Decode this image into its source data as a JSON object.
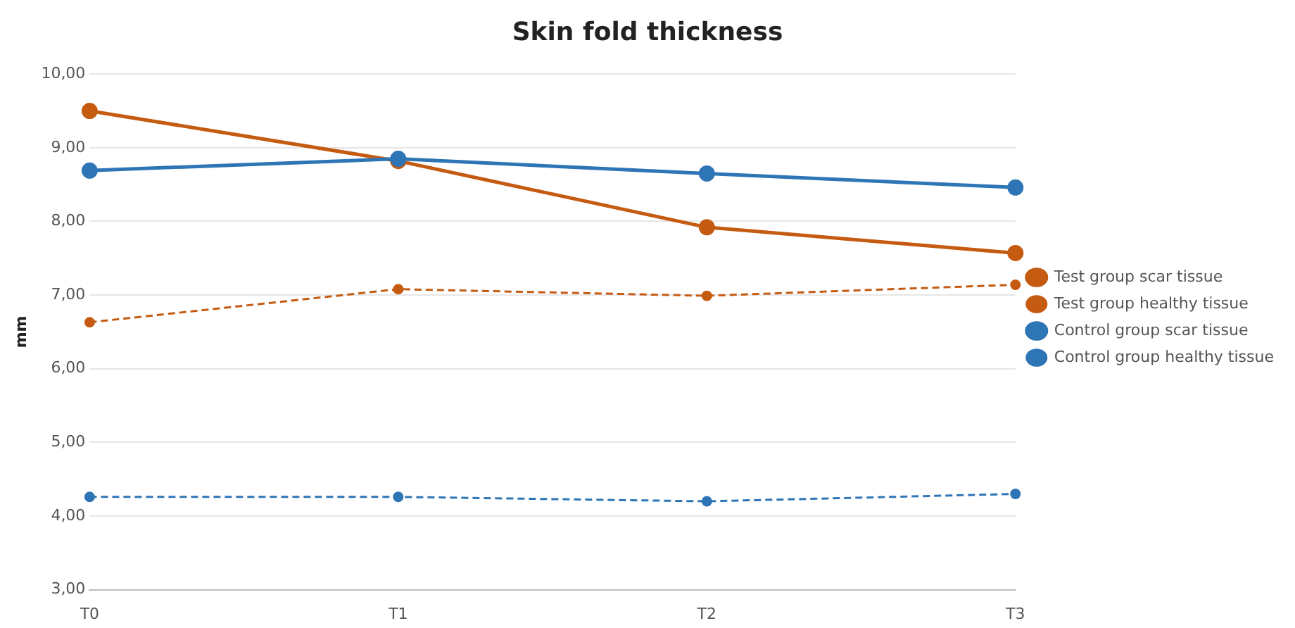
{
  "chart_data": {
    "type": "line",
    "title": "Skin fold thickness",
    "ylabel": "mm",
    "categories": [
      "T0",
      "T1",
      "T2",
      "T3"
    ],
    "series": [
      {
        "name": "Test group scar tissue",
        "color": "#c55a11",
        "line_style": "solid",
        "values": [
          9.5,
          8.82,
          7.92,
          7.57
        ]
      },
      {
        "name": "Test group healthy tissue",
        "color": "#c55a11",
        "line_style": "dashed",
        "values": [
          6.63,
          7.08,
          6.99,
          7.14
        ]
      },
      {
        "name": "Control group scar tissue",
        "color": "#2e75b6",
        "line_style": "solid",
        "values": [
          8.69,
          8.85,
          8.65,
          8.46
        ]
      },
      {
        "name": "Control group healthy tissue",
        "color": "#2e75b6",
        "line_style": "dashed",
        "values": [
          4.26,
          4.26,
          4.2,
          4.3
        ]
      }
    ],
    "ylim": [
      3,
      10
    ],
    "yticks": [
      {
        "value": 3,
        "label": "3,00"
      },
      {
        "value": 4,
        "label": "4,00"
      },
      {
        "value": 5,
        "label": "5,00"
      },
      {
        "value": 6,
        "label": "6,00"
      },
      {
        "value": 7,
        "label": "7,00"
      },
      {
        "value": 8,
        "label": "8,00"
      },
      {
        "value": 9,
        "label": "9,00"
      },
      {
        "value": 10,
        "label": "10,00"
      }
    ],
    "grid": "y",
    "legend": "right",
    "marker": "circle"
  }
}
